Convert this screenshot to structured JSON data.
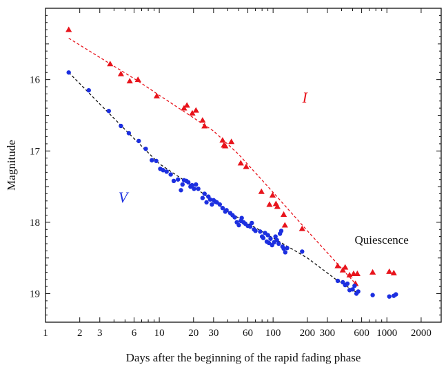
{
  "chart_data": {
    "type": "scatter",
    "title": "",
    "xlabel": "Days after the beginning of the rapid fading phase",
    "ylabel": "Magnitude",
    "x_scale": "log",
    "xlim": [
      1,
      3000
    ],
    "ylim": [
      19.4,
      15.0
    ],
    "y_inverted": true,
    "grid": false,
    "x_ticks": [
      1,
      2,
      3,
      6,
      10,
      20,
      30,
      60,
      100,
      200,
      300,
      600,
      1000,
      2000
    ],
    "x_tick_labels": [
      "1",
      "2",
      "3",
      "6",
      "10",
      "20",
      "30",
      "60",
      "100",
      "200",
      "300",
      "600",
      "1000",
      "2000"
    ],
    "y_ticks": [
      16,
      17,
      18,
      19
    ],
    "y_tick_labels": [
      "16",
      "17",
      "18",
      "19"
    ],
    "annotations": [
      {
        "text": "Quiescence",
        "x": 900,
        "y": 18.3
      }
    ],
    "series": [
      {
        "name": "I",
        "label_x": 190,
        "label_y": 16.32,
        "color": "#e8141c",
        "marker": "triangle",
        "points": [
          [
            1.6,
            15.3
          ],
          [
            3.7,
            15.78
          ],
          [
            4.6,
            15.92
          ],
          [
            5.5,
            16.02
          ],
          [
            6.5,
            16.0
          ],
          [
            9.5,
            16.23
          ],
          [
            16.5,
            16.4
          ],
          [
            17.5,
            16.36
          ],
          [
            19.5,
            16.47
          ],
          [
            21,
            16.43
          ],
          [
            24,
            16.57
          ],
          [
            25,
            16.65
          ],
          [
            36,
            16.85
          ],
          [
            37,
            16.92
          ],
          [
            38,
            16.93
          ],
          [
            43,
            16.87
          ],
          [
            52,
            17.17
          ],
          [
            58,
            17.22
          ],
          [
            79,
            17.57
          ],
          [
            93,
            17.75
          ],
          [
            99,
            17.62
          ],
          [
            106,
            17.74
          ],
          [
            109,
            17.78
          ],
          [
            124,
            17.89
          ],
          [
            127,
            18.04
          ],
          [
            180,
            18.09
          ],
          [
            370,
            18.61
          ],
          [
            410,
            18.67
          ],
          [
            430,
            18.63
          ],
          [
            470,
            18.74
          ],
          [
            510,
            18.72
          ],
          [
            530,
            18.86
          ],
          [
            550,
            18.72
          ],
          [
            750,
            18.7
          ],
          [
            1050,
            18.69
          ],
          [
            1150,
            18.71
          ]
        ],
        "fit": [
          [
            1.6,
            15.42
          ],
          [
            6.5,
            16.02
          ],
          [
            10,
            16.22
          ],
          [
            30,
            16.72
          ],
          [
            50,
            17.05
          ],
          [
            100,
            17.58
          ],
          [
            200,
            18.12
          ],
          [
            530,
            18.86
          ]
        ]
      },
      {
        "name": "V",
        "label_x": 4.8,
        "label_y": 17.72,
        "color": "#1c2fe0",
        "marker": "circle",
        "points": [
          [
            1.6,
            15.9
          ],
          [
            2.4,
            16.15
          ],
          [
            3.6,
            16.44
          ],
          [
            4.6,
            16.65
          ],
          [
            5.4,
            16.75
          ],
          [
            6.6,
            16.86
          ],
          [
            7.6,
            16.97
          ],
          [
            8.6,
            17.13
          ],
          [
            9.4,
            17.14
          ],
          [
            10.2,
            17.25
          ],
          [
            10.8,
            17.27
          ],
          [
            11.6,
            17.29
          ],
          [
            12.6,
            17.33
          ],
          [
            13.4,
            17.42
          ],
          [
            14.6,
            17.4
          ],
          [
            15.5,
            17.55
          ],
          [
            16,
            17.47
          ],
          [
            16.5,
            17.41
          ],
          [
            17.3,
            17.42
          ],
          [
            18,
            17.44
          ],
          [
            18.8,
            17.5
          ],
          [
            19.4,
            17.48
          ],
          [
            20.2,
            17.53
          ],
          [
            21,
            17.47
          ],
          [
            22,
            17.53
          ],
          [
            24,
            17.66
          ],
          [
            25,
            17.6
          ],
          [
            26,
            17.72
          ],
          [
            27,
            17.64
          ],
          [
            28,
            17.68
          ],
          [
            29,
            17.75
          ],
          [
            30,
            17.69
          ],
          [
            31,
            17.71
          ],
          [
            32,
            17.72
          ],
          [
            34,
            17.75
          ],
          [
            36,
            17.8
          ],
          [
            38,
            17.85
          ],
          [
            39,
            17.83
          ],
          [
            42,
            17.87
          ],
          [
            44,
            17.9
          ],
          [
            46,
            17.93
          ],
          [
            48,
            18.0
          ],
          [
            50,
            18.04
          ],
          [
            52,
            17.98
          ],
          [
            53,
            17.94
          ],
          [
            55,
            18.0
          ],
          [
            57,
            18.02
          ],
          [
            60,
            18.05
          ],
          [
            63,
            18.06
          ],
          [
            65,
            18.01
          ],
          [
            68,
            18.1
          ],
          [
            70,
            18.12
          ],
          [
            77,
            18.13
          ],
          [
            80,
            18.2
          ],
          [
            82,
            18.22
          ],
          [
            85,
            18.15
          ],
          [
            88,
            18.27
          ],
          [
            90,
            18.18
          ],
          [
            92,
            18.29
          ],
          [
            95,
            18.23
          ],
          [
            98,
            18.32
          ],
          [
            102,
            18.28
          ],
          [
            105,
            18.2
          ],
          [
            108,
            18.25
          ],
          [
            112,
            18.3
          ],
          [
            115,
            18.16
          ],
          [
            118,
            18.12
          ],
          [
            121,
            18.34
          ],
          [
            124,
            18.37
          ],
          [
            128,
            18.42
          ],
          [
            133,
            18.36
          ],
          [
            180,
            18.41
          ],
          [
            370,
            18.82
          ],
          [
            410,
            18.84
          ],
          [
            430,
            18.88
          ],
          [
            450,
            18.86
          ],
          [
            470,
            18.95
          ],
          [
            500,
            18.94
          ],
          [
            520,
            18.89
          ],
          [
            540,
            19.0
          ],
          [
            560,
            18.97
          ],
          [
            750,
            19.02
          ],
          [
            1050,
            19.04
          ],
          [
            1150,
            19.03
          ],
          [
            1200,
            19.01
          ]
        ],
        "fit": [
          [
            1.6,
            15.9
          ],
          [
            5,
            16.7
          ],
          [
            10,
            17.18
          ],
          [
            20,
            17.5
          ],
          [
            40,
            17.85
          ],
          [
            100,
            18.22
          ],
          [
            200,
            18.5
          ],
          [
            370,
            18.82
          ],
          [
            540,
            18.98
          ]
        ]
      }
    ]
  }
}
